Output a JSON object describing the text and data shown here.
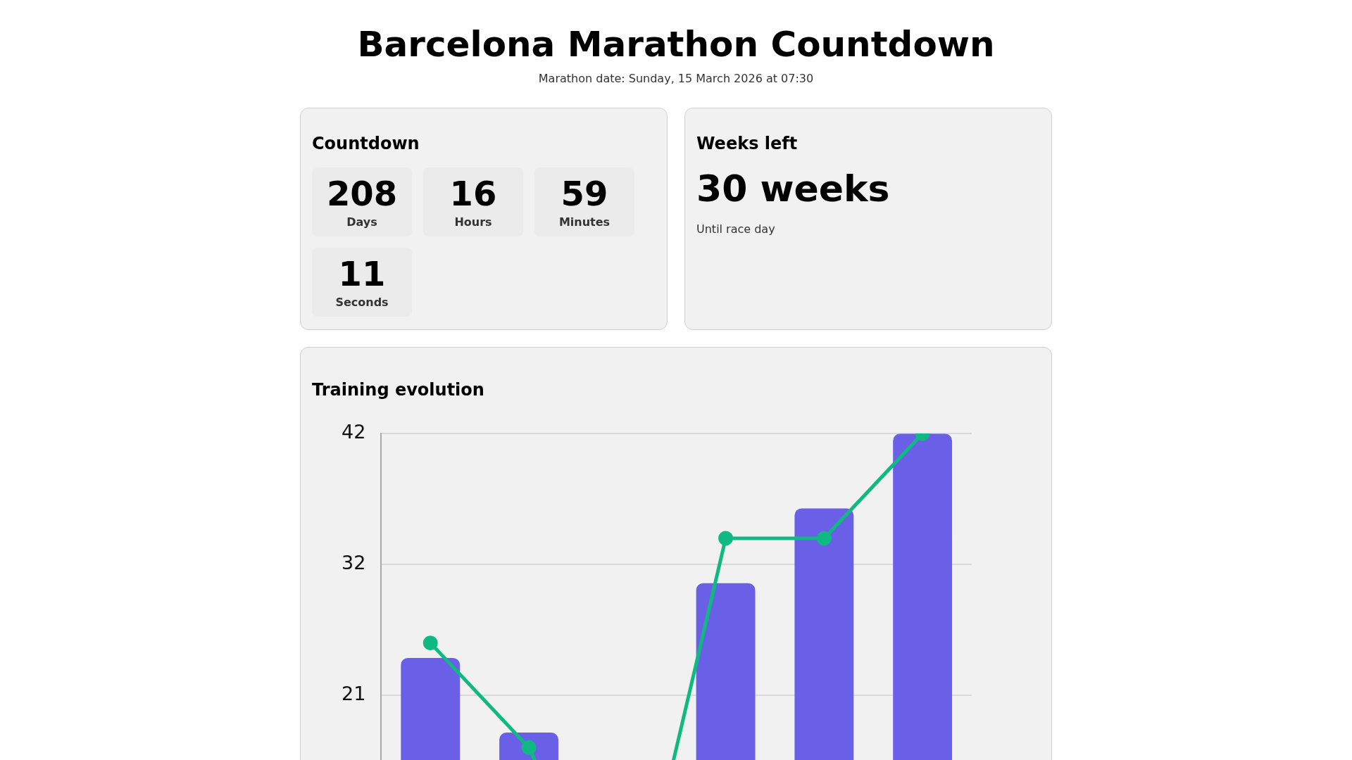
{
  "chart_data": [
    {
      "type": "other",
      "title": "Barcelona Marathon Countdown",
      "subtitle": "Marathon date: Sunday, 15 March 2026 at 07:30"
    },
    {
      "type": "other",
      "title": "Countdown",
      "categories": [
        "Days",
        "Hours",
        "Minutes",
        "Seconds"
      ],
      "values": [
        208,
        16,
        59,
        11
      ],
      "data_labels": true
    },
    {
      "type": "other",
      "title": "Weeks left",
      "annotations": [
        "30 weeks",
        "Until race day"
      ]
    },
    {
      "type": "bar",
      "title": "Training evolution",
      "categories": [
        null,
        null,
        null,
        null,
        null,
        null
      ],
      "series": [
        {
          "type": "bar",
          "color": "#6a60e8",
          "values": [
            24,
            18,
            null,
            30,
            36,
            42
          ]
        },
        {
          "type": "line",
          "color": "#10b981",
          "values": [
            25.2,
            16.8,
            0,
            33.6,
            33.6,
            42
          ]
        }
      ],
      "ylim": [
        0,
        42
      ],
      "yticks": [
        21,
        {
          "value": 31.5,
          "label": "32"
        },
        42
      ],
      "grid": "y",
      "marker": "circle",
      "legend": false
    }
  ]
}
